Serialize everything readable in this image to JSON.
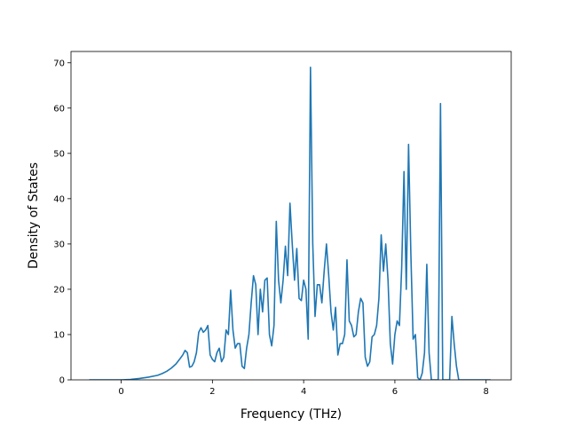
{
  "chart_data": {
    "type": "line",
    "xlabel": "Frequency (THz)",
    "ylabel": "Density of States",
    "xlim": [
      -1.1,
      8.55
    ],
    "ylim": [
      0,
      72.5
    ],
    "xticks": [
      0,
      2,
      4,
      6,
      8
    ],
    "yticks": [
      0,
      10,
      20,
      30,
      40,
      50,
      60,
      70
    ],
    "xtick_labels": [
      "0",
      "2",
      "4",
      "6",
      "8"
    ],
    "ytick_labels": [
      "0",
      "10",
      "20",
      "30",
      "40",
      "50",
      "60",
      "70"
    ],
    "grid": false,
    "line_color": "#1f77b4",
    "series": [
      {
        "x": [
          -0.7,
          -0.4,
          -0.2,
          0,
          0.2,
          0.4,
          0.6,
          0.8,
          0.9,
          1.0,
          1.1,
          1.2,
          1.3,
          1.35,
          1.4,
          1.45,
          1.5,
          1.55,
          1.6,
          1.65,
          1.7,
          1.75,
          1.8,
          1.85,
          1.9,
          1.95,
          2.0,
          2.05,
          2.1,
          2.15,
          2.2,
          2.25,
          2.3,
          2.35,
          2.4,
          2.45,
          2.5,
          2.55,
          2.6,
          2.65,
          2.7,
          2.75,
          2.8,
          2.85,
          2.9,
          2.95,
          3.0,
          3.05,
          3.1,
          3.15,
          3.2,
          3.25,
          3.3,
          3.35,
          3.4,
          3.45,
          3.5,
          3.55,
          3.6,
          3.65,
          3.7,
          3.75,
          3.8,
          3.85,
          3.9,
          3.95,
          4.0,
          4.05,
          4.1,
          4.15,
          4.2,
          4.25,
          4.3,
          4.35,
          4.4,
          4.45,
          4.5,
          4.55,
          4.6,
          4.65,
          4.7,
          4.75,
          4.8,
          4.85,
          4.9,
          4.95,
          5.0,
          5.05,
          5.1,
          5.15,
          5.2,
          5.25,
          5.3,
          5.35,
          5.4,
          5.45,
          5.5,
          5.55,
          5.6,
          5.65,
          5.7,
          5.75,
          5.8,
          5.85,
          5.9,
          5.95,
          6.0,
          6.05,
          6.1,
          6.15,
          6.2,
          6.25,
          6.3,
          6.35,
          6.4,
          6.45,
          6.5,
          6.55,
          6.6,
          6.65,
          6.7,
          6.75,
          6.8,
          6.85,
          6.9,
          6.95,
          7.0,
          7.05,
          7.1,
          7.15,
          7.2,
          7.25,
          7.3,
          7.35,
          7.4,
          7.6,
          7.8,
          8.0,
          8.1
        ],
        "y": [
          0,
          0,
          0,
          0,
          0.1,
          0.3,
          0.6,
          1.0,
          1.4,
          1.9,
          2.6,
          3.5,
          4.8,
          5.5,
          6.5,
          6.0,
          2.8,
          3.0,
          4.0,
          6.0,
          10.5,
          11.5,
          10.5,
          11.0,
          12.0,
          5.5,
          4.5,
          4.0,
          6.0,
          7.0,
          4.0,
          5.0,
          11.0,
          10.0,
          19.8,
          11.0,
          7.0,
          8.0,
          8.0,
          3.0,
          2.5,
          7.0,
          10.0,
          17.0,
          23.0,
          21.0,
          10.0,
          20.0,
          15.0,
          22.0,
          22.5,
          10.0,
          7.5,
          12.0,
          35.0,
          22.0,
          17.0,
          22.0,
          29.5,
          23.0,
          39.0,
          30.0,
          22.0,
          29.0,
          18.0,
          17.5,
          22.0,
          20.0,
          9.0,
          69.0,
          30.0,
          14.0,
          21.0,
          21.0,
          17.0,
          24.0,
          30.0,
          23.0,
          15.0,
          11.0,
          16.0,
          5.5,
          8.0,
          8.0,
          10.0,
          26.5,
          13.0,
          12.0,
          9.5,
          10.0,
          15.0,
          18.0,
          17.0,
          5.0,
          3.0,
          4.0,
          9.5,
          10.0,
          12.0,
          18.0,
          32.0,
          24.0,
          30.0,
          22.0,
          8.0,
          3.5,
          10.0,
          13.0,
          12.0,
          25.0,
          46.0,
          20.0,
          52.0,
          28.0,
          9.0,
          10.0,
          0.5,
          0,
          1.5,
          6.0,
          25.5,
          6.0,
          0,
          0,
          0,
          0,
          61.0,
          0,
          0,
          0,
          0,
          14.0,
          8.0,
          3.0,
          0,
          0,
          0,
          0,
          0
        ]
      }
    ]
  }
}
